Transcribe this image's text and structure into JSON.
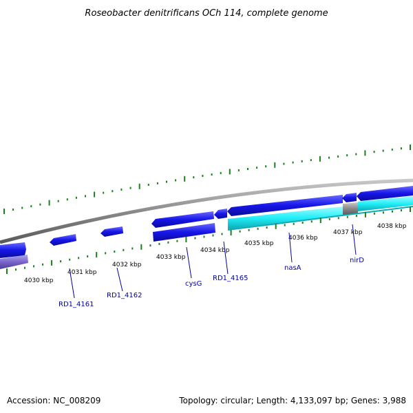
{
  "title": "Roseobacter denitrificans OCh 114, complete genome",
  "accession": "Accession: NC_008209",
  "summary": "Topology: circular; Length: 4,133,097 bp; Genes: 3,988",
  "kbp_labels": [
    "4030 kbp",
    "4031 kbp",
    "4032 kbp",
    "4033 kbp",
    "4034 kbp",
    "4035 kbp",
    "4036 kbp",
    "4037 kbp",
    "4038 kbp"
  ],
  "gene_labels": [
    "RD1_4161",
    "RD1_4162",
    "cysG",
    "RD1_4165",
    "nasA",
    "nirD"
  ],
  "colors": {
    "backbone": "#808080",
    "cds_forward": "#1a1ae6",
    "cds_reverse": "#1a1ae6",
    "rna_like": "#33e6f0",
    "tick": "#1a801a",
    "label": "#0000a0",
    "purple_feature": "#7a66cc"
  }
}
